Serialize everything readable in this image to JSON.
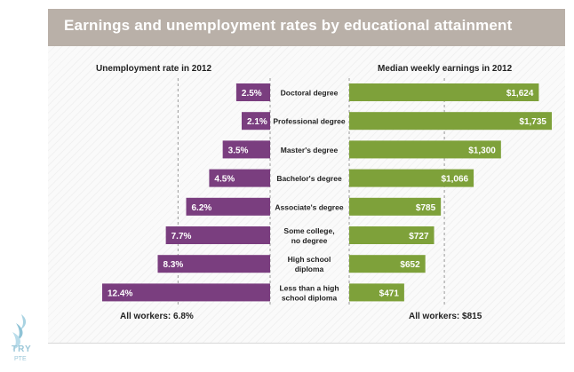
{
  "title": "Earnings and unemployment rates by educational attainment",
  "left_header": "Unemployment rate in 2012",
  "right_header": "Median weekly earnings in 2012",
  "left_footer": "All workers: 6.8%",
  "right_footer": "All workers: $815",
  "logo": {
    "text": "TRY",
    "sub": "PTE"
  },
  "colors": {
    "purple": "#7a3e7f",
    "green": "#7ea13a",
    "title_bar": "#b9b0a8"
  },
  "chart_data": {
    "type": "bar",
    "categories": [
      [
        "Doctoral degree"
      ],
      [
        "Professional degree"
      ],
      [
        "Master's degree"
      ],
      [
        "Bachelor's degree"
      ],
      [
        "Associate's degree"
      ],
      [
        "Some college,",
        "no degree"
      ],
      [
        "High school",
        "diploma"
      ],
      [
        "Less than a high",
        "school diploma"
      ]
    ],
    "series": [
      {
        "name": "Unemployment rate in 2012",
        "values": [
          2.5,
          2.1,
          3.5,
          4.5,
          6.2,
          7.7,
          8.3,
          12.4
        ],
        "labels": [
          "2.5%",
          "2.1%",
          "3.5%",
          "4.5%",
          "6.2%",
          "7.7%",
          "8.3%",
          "12.4%"
        ],
        "reference": 6.8
      },
      {
        "name": "Median weekly earnings in 2012",
        "values": [
          1624,
          1735,
          1300,
          1066,
          785,
          727,
          652,
          471
        ],
        "labels": [
          "$1,624",
          "$1,735",
          "$1,300",
          "$1,066",
          "$785",
          "$727",
          "$652",
          "$471"
        ],
        "reference": 815
      }
    ]
  }
}
